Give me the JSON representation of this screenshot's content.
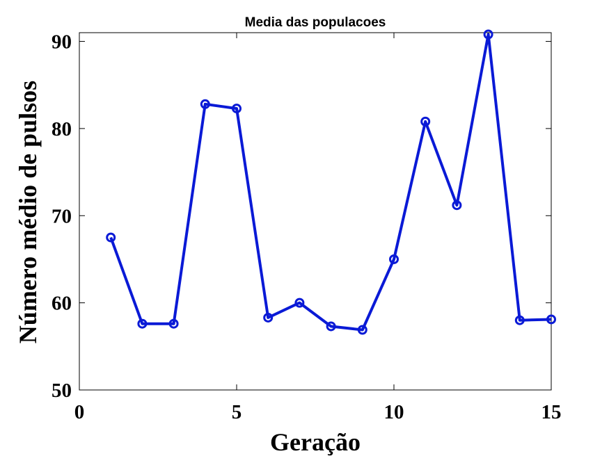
{
  "chart_data": {
    "type": "line",
    "title": "Media das populacoes",
    "xlabel": "Geração",
    "ylabel": "Número médio de pulsos",
    "xlim": [
      0,
      15
    ],
    "ylim": [
      50,
      91
    ],
    "xticks": [
      0,
      5,
      10,
      15
    ],
    "yticks": [
      50,
      60,
      70,
      80,
      90
    ],
    "grid": false,
    "legend": "none",
    "series": [
      {
        "color": "#0a1ad6",
        "marker": "circle",
        "x": [
          1,
          2,
          3,
          4,
          5,
          6,
          7,
          8,
          9,
          10,
          11,
          12,
          13,
          14,
          15
        ],
        "y": [
          67.5,
          57.6,
          57.6,
          82.8,
          82.3,
          58.3,
          60.0,
          57.3,
          56.9,
          65.0,
          80.8,
          71.2,
          90.8,
          58.0,
          58.1
        ]
      }
    ]
  }
}
